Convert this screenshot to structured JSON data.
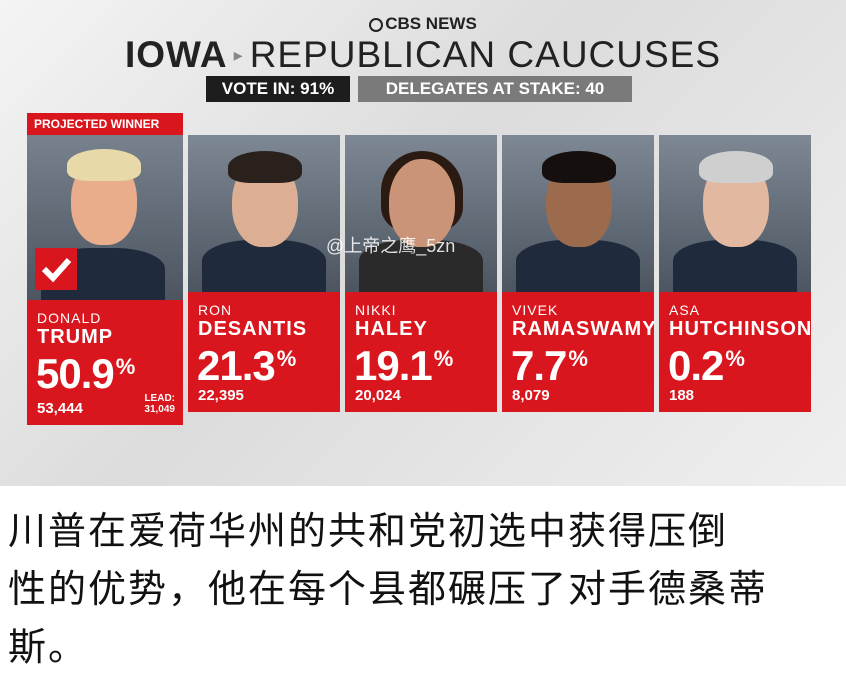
{
  "header": {
    "logo": "CBS NEWS",
    "state": "IOWA",
    "title": "REPUBLICAN CAUCUSES",
    "vote_in": "VOTE IN: 91%",
    "delegates": "DELEGATES AT STAKE: 40"
  },
  "winner": {
    "badge": "PROJECTED WINNER",
    "lead_label": "LEAD:",
    "lead": "31,049"
  },
  "candidates": [
    {
      "first_name": "DONALD",
      "last_name": "TRUMP",
      "percent": "50.9",
      "percent_sign": "%",
      "votes": "53,444"
    },
    {
      "first_name": "RON",
      "last_name": "DESANTIS",
      "percent": "21.3",
      "percent_sign": "%",
      "votes": "22,395"
    },
    {
      "first_name": "NIKKI",
      "last_name": "HALEY",
      "percent": "19.1",
      "percent_sign": "%",
      "votes": "20,024"
    },
    {
      "first_name": "VIVEK",
      "last_name": "RAMASWAMY",
      "percent": "7.7",
      "percent_sign": "%",
      "votes": "8,079"
    },
    {
      "first_name": "ASA",
      "last_name": "HUTCHINSON",
      "percent": "0.2",
      "percent_sign": "%",
      "votes": "188"
    }
  ],
  "watermark": "@上帝之鹰_5zn",
  "caption": {
    "lines": [
      "川普在爱荷华州的共和党初选中获得压倒",
      "性的优势，他在每个县都碾压了对手德桑蒂",
      "斯。"
    ]
  }
}
